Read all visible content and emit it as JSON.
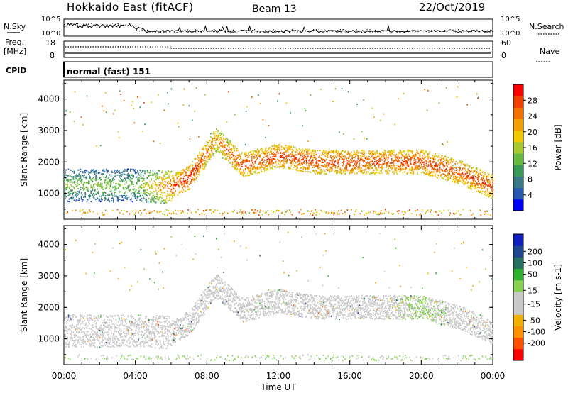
{
  "header": {
    "radar": "Hokkaido East (fitACF)",
    "beam": "Beam 13",
    "date": "22/Oct/2019"
  },
  "side_labels": {
    "nsky": "N.Sky",
    "nsearch": "N.Search",
    "freq": "Freq.",
    "freq_unit": "[MHz]",
    "nave": "Nave",
    "cpid": "CPID",
    "cpid_value": "normal (fast) 151"
  },
  "noise_axis": {
    "left_top": "10^5",
    "left_bottom": "10^0",
    "right_top": "10^5",
    "right_bottom": "10^0"
  },
  "freq_axis": {
    "left_top": "18",
    "left_bottom": "8",
    "right_top": "60",
    "right_bottom": "0"
  },
  "colors": {
    "power": [
      "#0000ff",
      "#2858b0",
      "#3a7a88",
      "#3a9a5a",
      "#66b840",
      "#a8c830",
      "#f0c800",
      "#f0a000",
      "#f07000",
      "#f04000",
      "#ff0000"
    ],
    "velocity": [
      "#ff0000",
      "#ff5000",
      "#ff9000",
      "#f0b000",
      "#c8c8c8",
      "#c8c8c8",
      "#88d050",
      "#30b030",
      "#287060",
      "#204890",
      "#1020c0"
    ]
  },
  "chart_data": [
    {
      "type": "heatmap",
      "name": "power",
      "xlabel": "Time UT",
      "ylabel": "Slant Range [km]",
      "x_ticks": [
        "00:00",
        "04:00",
        "08:00",
        "12:00",
        "16:00",
        "20:00",
        "00:00"
      ],
      "x_range_hours": [
        0,
        24
      ],
      "y_ticks": [
        1000,
        2000,
        3000,
        4000
      ],
      "ylim": [
        180,
        4600
      ],
      "colorbar": {
        "label": "Power [dB]",
        "ticks": [
          4,
          8,
          12,
          16,
          20,
          24,
          28
        ],
        "range": [
          0,
          32
        ]
      },
      "echo_bands": [
        {
          "name": "main-echo",
          "t": [
            0.0,
            2.0,
            4.0,
            6.0,
            7.0,
            8.5,
            10.0,
            12.0,
            14.0,
            16.0,
            18.0,
            20.0,
            22.0,
            24.0
          ],
          "range_center": [
            1250,
            1250,
            1250,
            1200,
            1500,
            2700,
            1900,
            2200,
            2000,
            2000,
            2000,
            2000,
            1700,
            1200
          ],
          "power_db": [
            14,
            15,
            14,
            26,
            30,
            24,
            28,
            28,
            28,
            28,
            28,
            28,
            28,
            28
          ]
        },
        {
          "name": "upper-echo",
          "t": [
            0.0,
            2.0,
            4.0,
            6.0
          ],
          "range_center": [
            2500,
            2600,
            2800,
            2700
          ],
          "power_db": [
            6,
            10,
            12,
            12
          ]
        },
        {
          "name": "near-range",
          "t": [
            0.0,
            24.0
          ],
          "range_center": [
            400,
            400
          ],
          "power_db": [
            16,
            22
          ]
        }
      ]
    },
    {
      "type": "heatmap",
      "name": "velocity",
      "xlabel": "Time UT",
      "ylabel": "Slant Range [km]",
      "x_ticks": [
        "00:00",
        "04:00",
        "08:00",
        "12:00",
        "16:00",
        "20:00",
        "00:00"
      ],
      "x_range_hours": [
        0,
        24
      ],
      "y_ticks": [
        1000,
        2000,
        3000,
        4000
      ],
      "ylim": [
        180,
        4600
      ],
      "colorbar": {
        "label": "Velocity [m s-1]",
        "ticks": [
          200,
          100,
          50,
          15,
          -15,
          -50,
          -100,
          -200
        ],
        "range": [
          -250,
          250
        ]
      },
      "echo_bands": [
        {
          "name": "main-echo",
          "t": [
            0.0,
            2.0,
            4.0,
            6.0,
            7.0,
            8.5,
            10.0,
            12.0,
            14.0,
            16.0,
            18.0,
            20.0,
            22.0,
            24.0
          ],
          "range_center": [
            1250,
            1250,
            1250,
            1200,
            1500,
            2700,
            1900,
            2200,
            2000,
            2000,
            2000,
            2000,
            1700,
            1200
          ],
          "velocity_ms": [
            0,
            0,
            0,
            0,
            0,
            0,
            0,
            0,
            0,
            0,
            0,
            30,
            0,
            0
          ]
        },
        {
          "name": "near-range",
          "t": [
            0.0,
            24.0
          ],
          "range_center": [
            400,
            400
          ],
          "velocity_ms": [
            40,
            40
          ]
        }
      ]
    }
  ]
}
